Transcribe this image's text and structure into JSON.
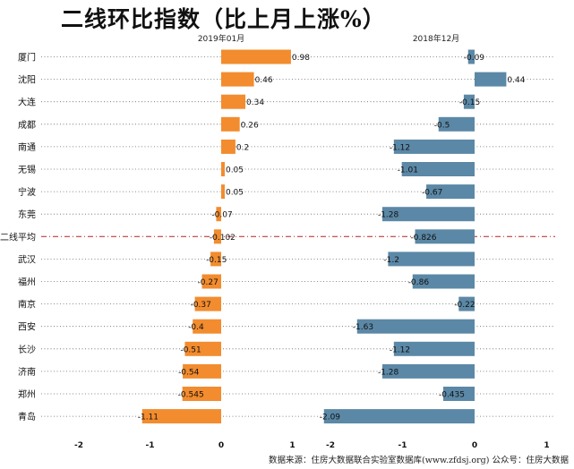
{
  "title": "二线环比指数（比上月上涨%）",
  "footer": "数据来源：住房大数据联合实验室数据库(www.zfdsj.org) 公众号：住房大数据",
  "colors": {
    "left_bar": "#f28c2e",
    "right_bar": "#5b88a6",
    "avg_line": "#b22222",
    "guide": "#666666"
  },
  "chart_data": [
    {
      "type": "bar",
      "orientation": "horizontal",
      "title": "2019年01月",
      "categories": [
        "厦门",
        "沈阳",
        "大连",
        "成都",
        "南通",
        "无锡",
        "宁波",
        "东莞",
        "二线平均",
        "武汉",
        "福州",
        "南京",
        "西安",
        "长沙",
        "济南",
        "郑州",
        "青岛"
      ],
      "values": [
        0.98,
        0.46,
        0.34,
        0.26,
        0.2,
        0.05,
        0.05,
        -0.07,
        -0.102,
        -0.15,
        -0.27,
        -0.37,
        -0.4,
        -0.51,
        -0.54,
        -0.545,
        -1.11
      ],
      "value_labels": [
        "0.98",
        "0.46",
        "0.34",
        "0.26",
        "0.2",
        "0.05",
        "0.05",
        "-0.07",
        "-0.102",
        "-0.15",
        "-0.27",
        "-0.37",
        "-0.4",
        "-0.51",
        "-0.54",
        "-0.545",
        "-1.11"
      ],
      "xlim": [
        -2.1,
        1.1
      ],
      "xticks": [
        "-2",
        "-1",
        "0",
        "1"
      ]
    },
    {
      "type": "bar",
      "orientation": "horizontal",
      "title": "2018年12月",
      "categories": [
        "厦门",
        "沈阳",
        "大连",
        "成都",
        "南通",
        "无锡",
        "宁波",
        "东莞",
        "二线平均",
        "武汉",
        "福州",
        "南京",
        "西安",
        "长沙",
        "济南",
        "郑州",
        "青岛"
      ],
      "values": [
        -0.09,
        0.44,
        -0.15,
        -0.5,
        -1.12,
        -1.01,
        -0.67,
        -1.28,
        -0.826,
        -1.2,
        -0.86,
        -0.22,
        -1.63,
        -1.12,
        -1.28,
        -0.435,
        -2.09
      ],
      "value_labels": [
        "-0.09",
        "0.44",
        "-0.15",
        "-0.5",
        "-1.12",
        "-1.01",
        "-0.67",
        "-1.28",
        "-0.826",
        "-1.2",
        "-0.86",
        "-0.22",
        "-1.63",
        "-1.12",
        "-1.28",
        "-0.435",
        "-2.09"
      ],
      "xlim": [
        -2.1,
        1.1
      ],
      "xticks": [
        "-2",
        "-1",
        "0",
        "1"
      ]
    }
  ]
}
